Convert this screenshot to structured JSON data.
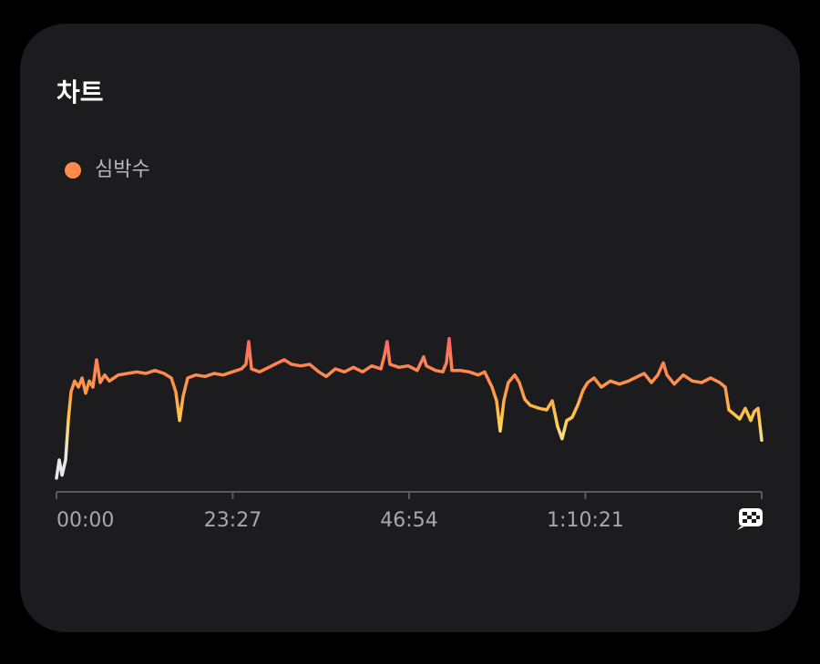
{
  "chart_data": {
    "type": "line",
    "title": "차트",
    "x": [
      0,
      22,
      44,
      73,
      95,
      116,
      145,
      175,
      204,
      233,
      262,
      291,
      320,
      349,
      385,
      422,
      494,
      567,
      640,
      713,
      785,
      858,
      916,
      952,
      982,
      1011,
      1047,
      1112,
      1185,
      1258,
      1331,
      1403,
      1476,
      1512,
      1534,
      1556,
      1621,
      1694,
      1767,
      1818,
      1876,
      1949,
      2021,
      2094,
      2152,
      2225,
      2298,
      2370,
      2443,
      2516,
      2589,
      2618,
      2639,
      2661,
      2734,
      2807,
      2879,
      2930,
      2952,
      3025,
      3083,
      3112,
      3134,
      3156,
      3221,
      3294,
      3366,
      3417,
      3476,
      3512,
      3541,
      3570,
      3606,
      3657,
      3694,
      3737,
      3781,
      3853,
      3912,
      3956,
      3999,
      4035,
      4072,
      4115,
      4159,
      4203,
      4239,
      4290,
      4348,
      4421,
      4493,
      4566,
      4639,
      4690,
      4748,
      4799,
      4843,
      4872,
      4930,
      5002,
      5075,
      5148,
      5221,
      5293,
      5337,
      5366,
      5410,
      5453,
      5497,
      5541,
      5570,
      5599,
      5628
    ],
    "series": [
      {
        "name": "심박수",
        "color": "#ff8a4c",
        "values": [
          69,
          81,
          71,
          81,
          108,
          126,
          133,
          129,
          135,
          125,
          133,
          129,
          147,
          132,
          137,
          133,
          137,
          138,
          139,
          138,
          140,
          138,
          135,
          126,
          107,
          123,
          135,
          137,
          136,
          138,
          137,
          139,
          141,
          144,
          159,
          141,
          139,
          142,
          145,
          147,
          144,
          143,
          144,
          139,
          136,
          141,
          139,
          142,
          139,
          143,
          141,
          150,
          159,
          144,
          142,
          143,
          140,
          149,
          143,
          140,
          139,
          145,
          161,
          140,
          140,
          139,
          137,
          139,
          129,
          120,
          100,
          120,
          132,
          137,
          132,
          121,
          117,
          115,
          114,
          120,
          103,
          95,
          107,
          109,
          117,
          127,
          132,
          135,
          129,
          133,
          131,
          133,
          136,
          138,
          132,
          137,
          145,
          137,
          131,
          137,
          133,
          132,
          135,
          132,
          129,
          114,
          111,
          108,
          115,
          107,
          113,
          115,
          94
        ]
      }
    ],
    "xlim": [
      0,
      5628
    ],
    "xticks": [
      {
        "value": 0,
        "label": "00:00"
      },
      {
        "value": 1407,
        "label": "23:27"
      },
      {
        "value": 2814,
        "label": "46:54"
      },
      {
        "value": 4221,
        "label": "1:10:21"
      }
    ],
    "ylim": [
      60,
      180
    ]
  }
}
